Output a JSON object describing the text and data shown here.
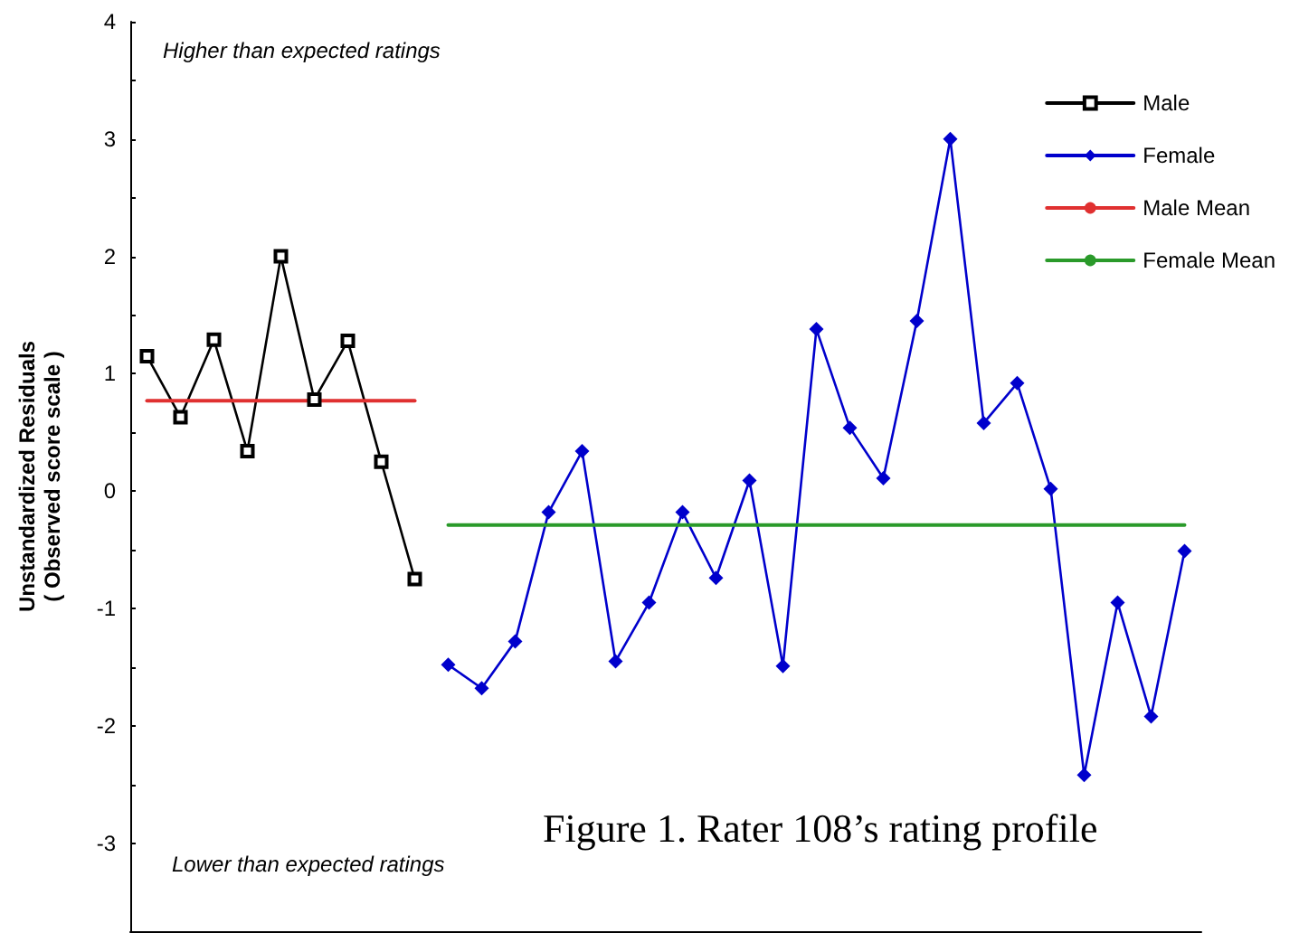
{
  "chart_data": {
    "type": "line",
    "ylabel": "Unstandardized Residuals\n( Observed score scale )",
    "annotations": [
      "Higher than expected ratings",
      "Lower than expected ratings",
      "Figure 1. Rater 108’s rating profile"
    ],
    "categories": [
      null,
      null,
      null,
      null,
      null,
      null,
      null,
      null,
      null,
      null,
      null,
      null,
      null,
      null,
      null,
      null,
      null,
      null,
      null,
      null,
      null,
      null,
      null,
      null,
      null,
      null,
      null,
      null,
      null,
      null,
      null,
      null
    ],
    "series": [
      {
        "name": "Male",
        "color": "#000000",
        "marker": "square",
        "values": [
          1.15,
          0.63,
          1.29,
          0.34,
          2.0,
          0.78,
          1.28,
          0.25,
          -0.75,
          null,
          null,
          null,
          null,
          null,
          null,
          null,
          null,
          null,
          null,
          null,
          null,
          null,
          null,
          null,
          null,
          null,
          null,
          null,
          null,
          null,
          null,
          null
        ]
      },
      {
        "name": "Female",
        "color": "#0000cc",
        "marker": "diamond",
        "values": [
          null,
          null,
          null,
          null,
          null,
          null,
          null,
          null,
          null,
          -1.48,
          -1.68,
          -1.28,
          -0.18,
          0.34,
          -1.45,
          -0.95,
          -0.18,
          -0.74,
          0.09,
          -1.49,
          1.38,
          0.54,
          0.11,
          1.45,
          3.0,
          0.58,
          0.92,
          0.02,
          -2.42,
          -0.95,
          -1.92,
          -0.51
        ]
      },
      {
        "name": "Male Mean",
        "color": "#e03030",
        "marker": "none",
        "values": [
          0.77,
          0.77,
          0.77,
          0.77,
          0.77,
          0.77,
          0.77,
          0.77,
          0.77,
          null,
          null,
          null,
          null,
          null,
          null,
          null,
          null,
          null,
          null,
          null,
          null,
          null,
          null,
          null,
          null,
          null,
          null,
          null,
          null,
          null,
          null,
          null
        ]
      },
      {
        "name": "Female Mean",
        "color": "#2a9a2a",
        "marker": "none",
        "values": [
          null,
          null,
          null,
          null,
          null,
          null,
          null,
          null,
          null,
          -0.29,
          -0.29,
          -0.29,
          -0.29,
          -0.29,
          -0.29,
          -0.29,
          -0.29,
          -0.29,
          -0.29,
          -0.29,
          -0.29,
          -0.29,
          -0.29,
          -0.29,
          -0.29,
          -0.29,
          -0.29,
          -0.29,
          -0.29,
          -0.29,
          -0.29,
          -0.29
        ]
      }
    ],
    "ylim": [
      -3.75,
      4
    ],
    "yticks": [
      -3,
      {
        "value": -2.5,
        "label": null
      },
      -2,
      {
        "value": -1.5,
        "label": null
      },
      -1,
      {
        "value": -0.5,
        "label": null
      },
      0,
      {
        "value": 0.5,
        "label": null
      },
      1,
      {
        "value": 1.5,
        "label": null
      },
      2,
      {
        "value": 2.5,
        "label": null
      },
      3,
      {
        "value": 3.5,
        "label": null
      },
      4
    ],
    "grid": false,
    "legend": "top right",
    "tick_labels": "y"
  }
}
